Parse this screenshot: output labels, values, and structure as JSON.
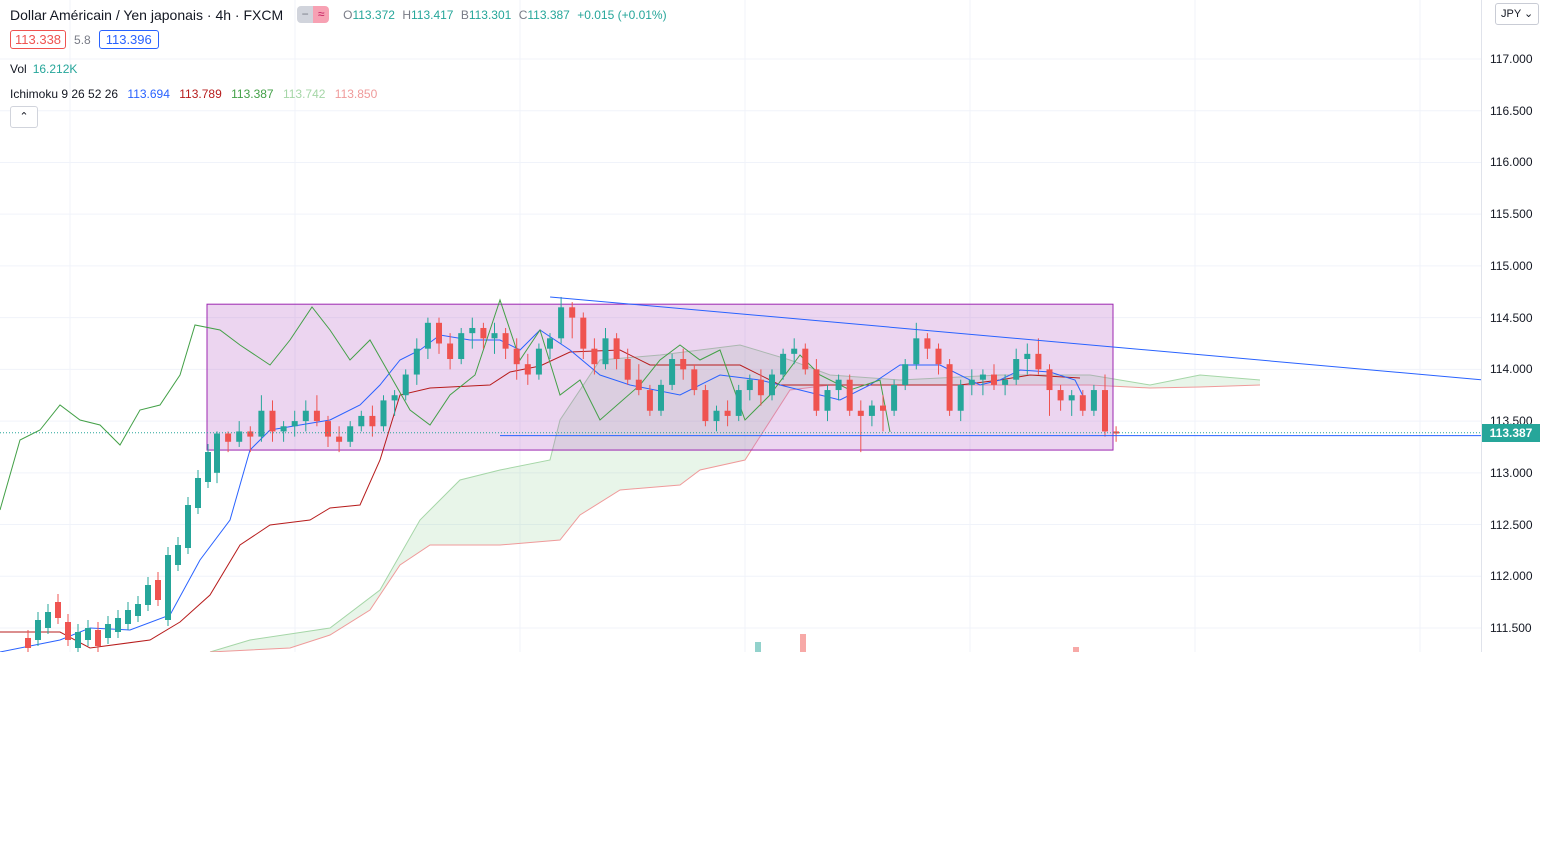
{
  "header": {
    "symbol_title": "Dollar Américain / Yen japonais · 4h · FXCM",
    "pill_minus": "−",
    "pill_approx": "≈",
    "ohlc": {
      "o_label": "O",
      "o_value": "113.372",
      "h_label": "H",
      "h_value": "113.417",
      "b_label": "B",
      "b_value": "113.301",
      "c_label": "C",
      "c_value": "113.387",
      "change": "+0.015 (+0.01%)"
    },
    "sell_price": "113.338",
    "spread": "5.8",
    "buy_price": "113.396",
    "volume_label": "Vol",
    "volume_value": "16.212K",
    "ichimoku_label": "Ichimoku 9 26 52 26",
    "ichimoku_values": [
      "113.694",
      "113.789",
      "113.387",
      "113.742",
      "113.850"
    ],
    "collapse_icon": "chevron-up-icon",
    "collapse_glyph": "⌃"
  },
  "price_scale": {
    "currency": "JPY ⌄",
    "ticks": [
      "117.000",
      "116.500",
      "116.000",
      "115.500",
      "115.000",
      "114.500",
      "114.000",
      "113.500",
      "113.000",
      "112.500",
      "112.000",
      "111.500"
    ],
    "last_price": "113.387"
  },
  "colors": {
    "up": "#26a69a",
    "down": "#ef5350",
    "tenkan": "#2962ff",
    "kijun": "#b71c1c",
    "chikou": "#43a047",
    "rect_fill": "rgba(186,104,200,0.28)",
    "rect_border": "#9c27b0"
  },
  "chart_data": {
    "type": "candlestick",
    "price_range": [
      111.3,
      117.4
    ],
    "last_price": 113.387,
    "candles": [
      [
        113.0,
        113.4,
        112.9,
        113.38
      ],
      [
        113.38,
        113.4,
        113.2,
        113.3
      ],
      [
        113.3,
        113.5,
        113.25,
        113.4
      ],
      [
        113.4,
        113.45,
        113.2,
        113.35
      ],
      [
        113.35,
        113.75,
        113.3,
        113.6
      ],
      [
        113.6,
        113.7,
        113.3,
        113.4
      ],
      [
        113.4,
        113.5,
        113.3,
        113.45
      ],
      [
        113.45,
        113.6,
        113.35,
        113.5
      ],
      [
        113.5,
        113.7,
        113.4,
        113.6
      ],
      [
        113.6,
        113.75,
        113.45,
        113.5
      ],
      [
        113.5,
        113.55,
        113.25,
        113.35
      ],
      [
        113.35,
        113.45,
        113.2,
        113.3
      ],
      [
        113.3,
        113.5,
        113.25,
        113.45
      ],
      [
        113.45,
        113.6,
        113.4,
        113.55
      ],
      [
        113.55,
        113.65,
        113.35,
        113.45
      ],
      [
        113.45,
        113.75,
        113.4,
        113.7
      ],
      [
        113.7,
        113.8,
        113.55,
        113.75
      ],
      [
        113.75,
        114.0,
        113.7,
        113.95
      ],
      [
        113.95,
        114.3,
        113.85,
        114.2
      ],
      [
        114.2,
        114.5,
        114.1,
        114.45
      ],
      [
        114.45,
        114.5,
        114.15,
        114.25
      ],
      [
        114.25,
        114.35,
        114.0,
        114.1
      ],
      [
        114.1,
        114.4,
        114.05,
        114.35
      ],
      [
        114.35,
        114.5,
        114.2,
        114.4
      ],
      [
        114.4,
        114.45,
        114.2,
        114.3
      ],
      [
        114.3,
        114.45,
        114.15,
        114.35
      ],
      [
        114.35,
        114.4,
        114.1,
        114.2
      ],
      [
        114.2,
        114.3,
        113.9,
        114.05
      ],
      [
        114.05,
        114.15,
        113.85,
        113.95
      ],
      [
        113.95,
        114.25,
        113.9,
        114.2
      ],
      [
        114.2,
        114.35,
        114.1,
        114.3
      ],
      [
        114.3,
        114.7,
        114.25,
        114.6
      ],
      [
        114.6,
        114.65,
        114.3,
        114.5
      ],
      [
        114.5,
        114.55,
        114.1,
        114.2
      ],
      [
        114.2,
        114.3,
        113.95,
        114.05
      ],
      [
        114.05,
        114.4,
        114.0,
        114.3
      ],
      [
        114.3,
        114.35,
        114.0,
        114.1
      ],
      [
        114.1,
        114.2,
        113.85,
        113.9
      ],
      [
        113.9,
        114.05,
        113.75,
        113.8
      ],
      [
        113.8,
        113.85,
        113.55,
        113.6
      ],
      [
        113.6,
        113.9,
        113.55,
        113.85
      ],
      [
        113.85,
        114.15,
        113.8,
        114.1
      ],
      [
        114.1,
        114.2,
        113.9,
        114.0
      ],
      [
        114.0,
        114.05,
        113.75,
        113.8
      ],
      [
        113.8,
        113.85,
        113.45,
        113.5
      ],
      [
        113.5,
        113.65,
        113.4,
        113.6
      ],
      [
        113.6,
        113.7,
        113.45,
        113.55
      ],
      [
        113.55,
        113.85,
        113.5,
        113.8
      ],
      [
        113.8,
        113.95,
        113.7,
        113.9
      ],
      [
        113.9,
        114.0,
        113.65,
        113.75
      ],
      [
        113.75,
        114.0,
        113.7,
        113.95
      ],
      [
        113.95,
        114.2,
        113.9,
        114.15
      ],
      [
        114.15,
        114.3,
        114.05,
        114.2
      ],
      [
        114.2,
        114.25,
        113.95,
        114.0
      ],
      [
        114.0,
        114.1,
        113.55,
        113.6
      ],
      [
        113.6,
        113.85,
        113.5,
        113.8
      ],
      [
        113.8,
        113.95,
        113.7,
        113.9
      ],
      [
        113.9,
        113.95,
        113.55,
        113.6
      ],
      [
        113.6,
        113.7,
        113.2,
        113.55
      ],
      [
        113.55,
        113.7,
        113.45,
        113.65
      ],
      [
        113.65,
        113.75,
        113.4,
        113.6
      ],
      [
        113.6,
        113.9,
        113.55,
        113.85
      ],
      [
        113.85,
        114.1,
        113.8,
        114.05
      ],
      [
        114.05,
        114.45,
        114.0,
        114.3
      ],
      [
        114.3,
        114.35,
        114.1,
        114.2
      ],
      [
        114.2,
        114.25,
        113.95,
        114.05
      ],
      [
        114.05,
        114.1,
        113.55,
        113.6
      ],
      [
        113.6,
        113.9,
        113.5,
        113.85
      ],
      [
        113.85,
        114.0,
        113.75,
        113.9
      ],
      [
        113.9,
        114.0,
        113.75,
        113.95
      ],
      [
        113.95,
        114.05,
        113.8,
        113.85
      ],
      [
        113.85,
        113.95,
        113.75,
        113.9
      ],
      [
        113.9,
        114.2,
        113.85,
        114.1
      ],
      [
        114.1,
        114.25,
        113.95,
        114.15
      ],
      [
        114.15,
        114.3,
        113.95,
        114.0
      ],
      [
        114.0,
        114.05,
        113.55,
        113.8
      ],
      [
        113.8,
        113.85,
        113.6,
        113.7
      ],
      [
        113.7,
        113.8,
        113.55,
        113.75
      ],
      [
        113.75,
        113.8,
        113.55,
        113.6
      ],
      [
        113.6,
        113.85,
        113.55,
        113.8
      ],
      [
        113.8,
        113.95,
        113.35,
        113.4
      ],
      [
        113.4,
        113.45,
        113.3,
        113.38
      ]
    ],
    "rectangle": {
      "x_from_candle": 0,
      "x_to_candle": 81,
      "price_high": 114.63,
      "price_low": 113.22
    },
    "trendline": {
      "from": [
        31,
        114.7
      ],
      "to_price_at_edge": 113.9
    },
    "support_line": 113.36
  }
}
